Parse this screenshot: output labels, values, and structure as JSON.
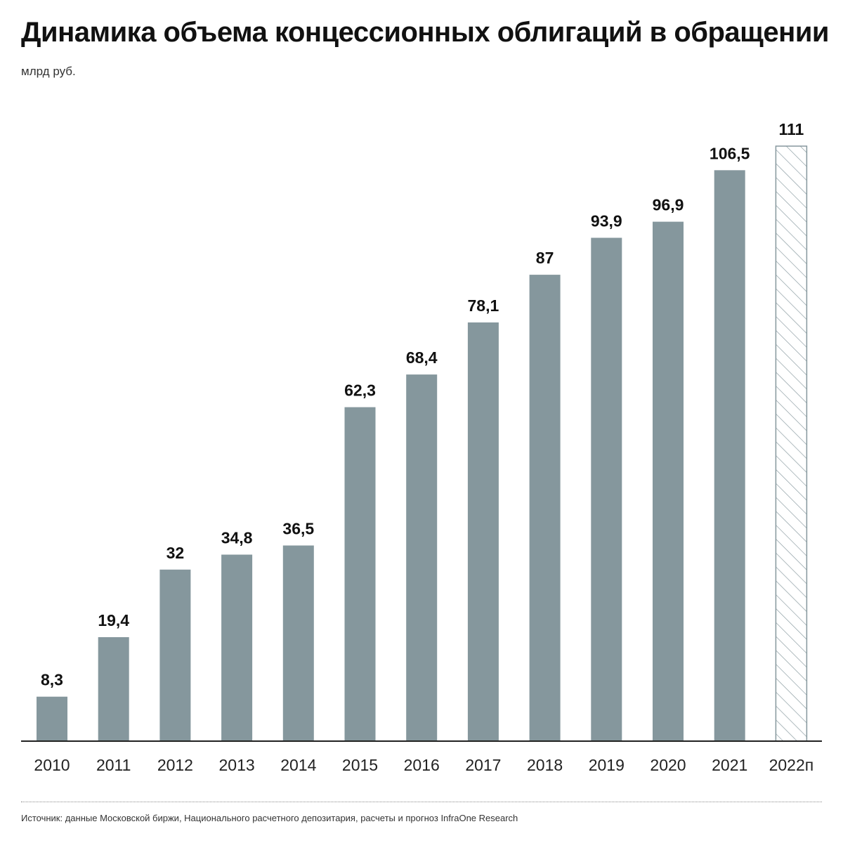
{
  "title": "Динамика объема концессионных облигаций в обращении",
  "unit": "млрд руб.",
  "source": "Источник: данные Московской биржи, Национального расчетного депозитария, расчеты и прогноз InfraOne Research",
  "colors": {
    "bar": "#85979d",
    "forecast_stroke": "#85979d",
    "axis": "#222222"
  },
  "chart_data": {
    "type": "bar",
    "title": "Динамика объема концессионных облигаций в обращении",
    "ylabel": "млрд руб.",
    "xlabel": "",
    "categories": [
      "2010",
      "2011",
      "2012",
      "2013",
      "2014",
      "2015",
      "2016",
      "2017",
      "2018",
      "2019",
      "2020",
      "2021",
      "2022п"
    ],
    "values": [
      8.3,
      19.4,
      32,
      34.8,
      36.5,
      62.3,
      68.4,
      78.1,
      87,
      93.9,
      96.9,
      106.5,
      111
    ],
    "value_labels": [
      "8,3",
      "19,4",
      "32",
      "34,8",
      "36,5",
      "62,3",
      "68,4",
      "78,1",
      "87",
      "93,9",
      "96,9",
      "106,5",
      "111"
    ],
    "forecast": [
      false,
      false,
      false,
      false,
      false,
      false,
      false,
      false,
      false,
      false,
      false,
      false,
      true
    ],
    "ylim": [
      0,
      111
    ],
    "grid": false,
    "legend": "none"
  }
}
